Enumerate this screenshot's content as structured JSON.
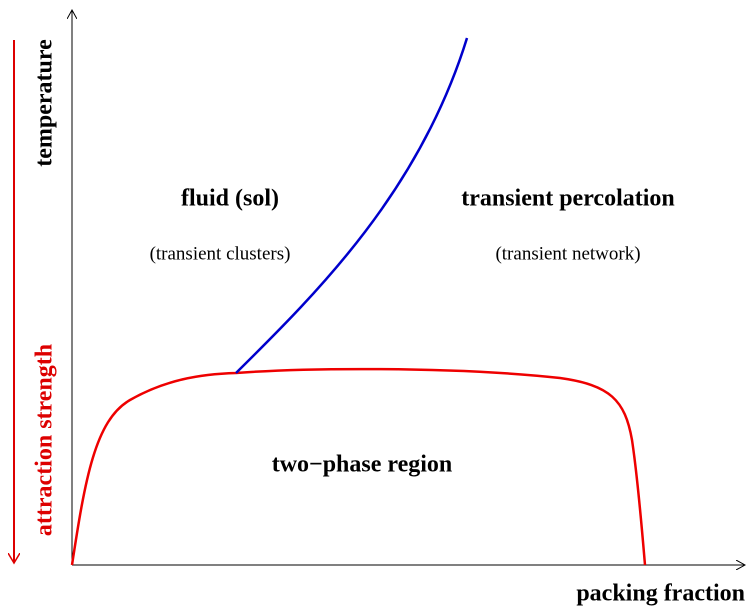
{
  "axes": {
    "y_label": "temperature",
    "y_label_secondary": "attraction strength",
    "x_label": "packing fraction"
  },
  "regions": [
    {
      "title": "fluid (sol)",
      "subtitle": "(transient clusters)"
    },
    {
      "title": "transient percolation",
      "subtitle": "(transient network)"
    },
    {
      "title": "two−phase region"
    }
  ]
}
